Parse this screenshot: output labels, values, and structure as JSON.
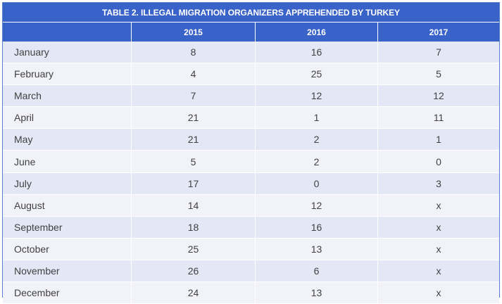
{
  "table": {
    "title": "TABLE 2. ILLEGAL MIGRATION ORGANIZERS APPREHENDED BY TURKEY",
    "columns": [
      "",
      "2015",
      "2016",
      "2017"
    ],
    "rows": [
      {
        "month": "January",
        "y2015": "8",
        "y2016": "16",
        "y2017": "7"
      },
      {
        "month": "February",
        "y2015": "4",
        "y2016": "25",
        "y2017": "5"
      },
      {
        "month": "March",
        "y2015": "7",
        "y2016": "12",
        "y2017": "12"
      },
      {
        "month": "April",
        "y2015": "21",
        "y2016": "1",
        "y2017": "11"
      },
      {
        "month": "May",
        "y2015": "21",
        "y2016": "2",
        "y2017": "1"
      },
      {
        "month": "June",
        "y2015": "5",
        "y2016": "2",
        "y2017": "0"
      },
      {
        "month": "July",
        "y2015": "17",
        "y2016": "0",
        "y2017": "3"
      },
      {
        "month": "August",
        "y2015": "14",
        "y2016": "12",
        "y2017": "x"
      },
      {
        "month": "September",
        "y2015": "18",
        "y2016": "16",
        "y2017": "x"
      },
      {
        "month": "October",
        "y2015": "25",
        "y2016": "13",
        "y2017": "x"
      },
      {
        "month": "November",
        "y2015": "26",
        "y2016": "6",
        "y2017": "x"
      },
      {
        "month": "December",
        "y2015": "24",
        "y2016": "13",
        "y2017": "x"
      }
    ]
  },
  "colors": {
    "header_blue": "#3a63c9",
    "row_odd": "#e4e7f6",
    "row_even": "#f2f3f9",
    "text": "#414141"
  }
}
